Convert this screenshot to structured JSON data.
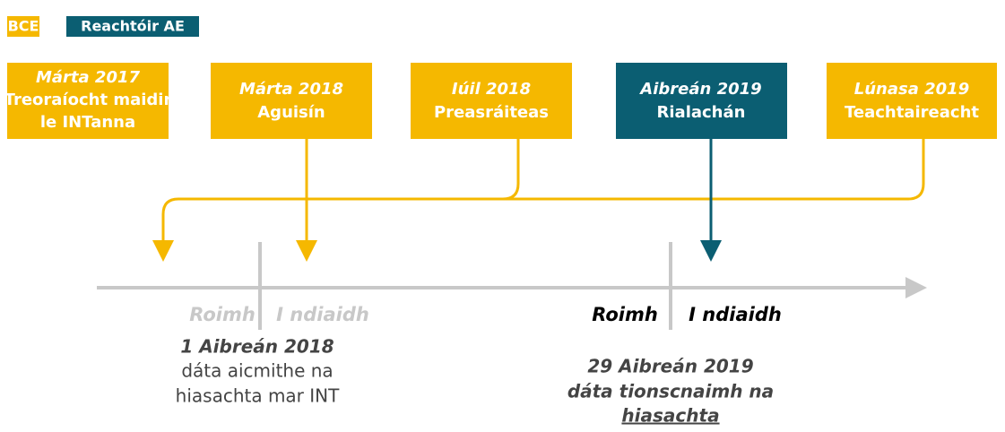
{
  "legend": [
    "BCE",
    "Reachtóir AE"
  ],
  "boxes": [
    {
      "date": "Márta 2017",
      "lines": [
        "Treoraíocht maidir",
        "le INTanna"
      ]
    },
    {
      "date": "Márta 2018",
      "lines": [
        "Aguisín"
      ]
    },
    {
      "date": "Iúil 2018",
      "lines": [
        "Preasráiteas"
      ]
    },
    {
      "date": "Aibreán 2019",
      "lines": [
        "Rialachán"
      ]
    },
    {
      "date": "Lúnasa 2019",
      "lines": [
        "Teachtaireacht"
      ]
    }
  ],
  "markers": [
    {
      "before": "Roimh",
      "after": "I ndiaidh",
      "date": "1 Aibreán 2018",
      "description": [
        "dáta aicmithe na",
        "hiasachta mar INT"
      ]
    },
    {
      "before": "Roimh",
      "after": "I ndiaidh",
      "date": "29 Aibreán 2019",
      "description": [
        "dáta tionscnaimh na",
        "hiasachta"
      ]
    }
  ]
}
